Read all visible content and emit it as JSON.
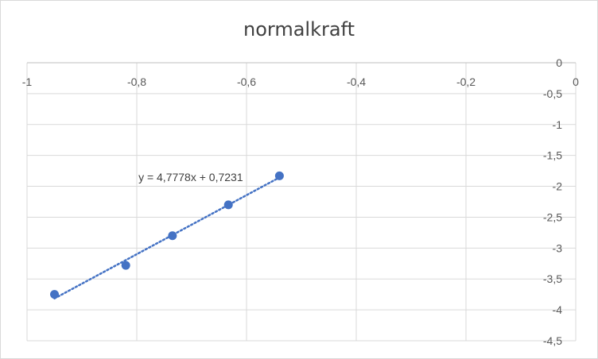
{
  "chart_data": {
    "type": "scatter",
    "title": "normalkraft",
    "xlabel": "",
    "ylabel": "",
    "xlim": [
      -1,
      0
    ],
    "ylim": [
      -4.5,
      0
    ],
    "x_ticks": [
      "-1",
      "-0,8",
      "-0,6",
      "-0,4",
      "-0,2",
      "0"
    ],
    "y_ticks": [
      "0",
      "-0,5",
      "-1",
      "-1,5",
      "-2",
      "-2,5",
      "-3",
      "-3,5",
      "-4",
      "-4,5"
    ],
    "grid": true,
    "legend": "none",
    "series": [
      {
        "x": [
          -0.95,
          -0.82,
          -0.735,
          -0.633,
          -0.54
        ],
        "y": [
          -3.75,
          -3.28,
          -2.8,
          -2.3,
          -1.83
        ],
        "color": "#4472c4"
      }
    ],
    "trendline": {
      "type": "linear",
      "equation": "y = 4,7778x + 0,7231",
      "slope": 4.7778,
      "intercept": 0.7231,
      "style": "dotted",
      "color": "#4472c4"
    }
  }
}
